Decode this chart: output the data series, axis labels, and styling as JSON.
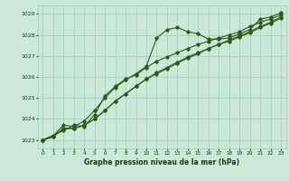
{
  "title": "Graphe pression niveau de la mer (hPa)",
  "bg_color": "#cbe8d8",
  "grid_color": "#9ecfb8",
  "line_color": "#2d5a1b",
  "marker_color": "#2d5a1b",
  "text_color": "#1a3a0a",
  "ylim": [
    1022.6,
    1029.4
  ],
  "xlim": [
    -0.5,
    23.5
  ],
  "yticks": [
    1023,
    1024,
    1025,
    1026,
    1027,
    1028,
    1029
  ],
  "xticks": [
    0,
    1,
    2,
    3,
    4,
    5,
    6,
    7,
    8,
    9,
    10,
    11,
    12,
    13,
    14,
    15,
    16,
    17,
    18,
    19,
    20,
    21,
    22,
    23
  ],
  "series1_x": [
    0,
    1,
    2,
    3,
    4,
    5,
    6,
    7,
    8,
    9,
    10,
    11,
    12,
    13,
    14,
    15,
    16,
    17,
    18,
    19,
    20,
    21,
    22,
    23
  ],
  "series1_y": [
    1023.0,
    1023.2,
    1023.7,
    1023.65,
    1023.9,
    1024.4,
    1025.0,
    1025.5,
    1025.85,
    1026.15,
    1026.5,
    1027.85,
    1028.25,
    1028.35,
    1028.15,
    1028.05,
    1027.8,
    1027.8,
    1027.85,
    1028.05,
    1028.25,
    1028.75,
    1028.85,
    1029.05
  ],
  "series2_x": [
    0,
    1,
    2,
    3,
    4,
    5,
    6,
    7,
    8,
    9,
    10,
    11,
    12,
    13,
    14,
    15,
    16,
    17,
    18,
    19,
    20,
    21,
    22,
    23
  ],
  "series2_y": [
    1023.0,
    1023.15,
    1023.55,
    1023.55,
    1023.7,
    1024.0,
    1024.4,
    1024.85,
    1025.2,
    1025.55,
    1025.9,
    1026.2,
    1026.45,
    1026.7,
    1026.95,
    1027.15,
    1027.35,
    1027.55,
    1027.7,
    1027.9,
    1028.1,
    1028.35,
    1028.55,
    1028.8
  ],
  "series3_x": [
    0,
    1,
    2,
    3,
    4,
    5,
    6,
    7,
    8,
    9,
    10,
    11,
    12,
    13,
    14,
    15,
    16,
    17,
    18,
    19,
    20,
    21,
    22,
    23
  ],
  "series3_y": [
    1023.0,
    1023.15,
    1023.55,
    1023.55,
    1023.7,
    1024.0,
    1024.4,
    1024.85,
    1025.2,
    1025.55,
    1025.9,
    1026.15,
    1026.4,
    1026.65,
    1026.9,
    1027.1,
    1027.35,
    1027.55,
    1027.75,
    1027.95,
    1028.15,
    1028.4,
    1028.6,
    1028.85
  ],
  "series4_x": [
    0,
    2,
    3,
    4,
    5,
    6,
    7,
    8,
    9,
    10,
    11,
    12,
    13,
    14,
    15,
    16,
    17,
    18,
    19,
    20,
    21,
    22,
    23
  ],
  "series4_y": [
    1023.0,
    1023.45,
    1023.7,
    1023.65,
    1024.2,
    1025.1,
    1025.55,
    1025.9,
    1026.1,
    1026.45,
    1026.75,
    1026.95,
    1027.15,
    1027.35,
    1027.55,
    1027.7,
    1027.85,
    1028.0,
    1028.15,
    1028.4,
    1028.6,
    1028.75,
    1028.95
  ]
}
